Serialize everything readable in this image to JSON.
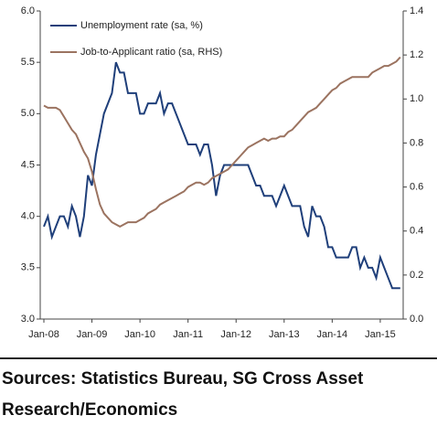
{
  "chart_data": {
    "type": "line",
    "categories": [
      "Jan-08",
      null,
      null,
      null,
      null,
      null,
      null,
      null,
      null,
      null,
      null,
      null,
      "Jan-09",
      null,
      null,
      null,
      null,
      null,
      null,
      null,
      null,
      null,
      null,
      null,
      "Jan-10",
      null,
      null,
      null,
      null,
      null,
      null,
      null,
      null,
      null,
      null,
      null,
      "Jan-11",
      null,
      null,
      null,
      null,
      null,
      null,
      null,
      null,
      null,
      null,
      null,
      "Jan-12",
      null,
      null,
      null,
      null,
      null,
      null,
      null,
      null,
      null,
      null,
      null,
      "Jan-13",
      null,
      null,
      null,
      null,
      null,
      null,
      null,
      null,
      null,
      null,
      null,
      "Jan-14",
      null,
      null,
      null,
      null,
      null,
      null,
      null,
      null,
      null,
      null,
      null,
      "Jan-15",
      null,
      null,
      null,
      null,
      null
    ],
    "series": [
      {
        "name": "Unemployment rate (sa, %)",
        "color": "#1f3f7a",
        "axis": "y",
        "values": [
          3.9,
          4.0,
          3.8,
          3.9,
          4.0,
          4.0,
          3.9,
          4.1,
          4.0,
          3.8,
          4.0,
          4.4,
          4.3,
          4.6,
          4.8,
          5.0,
          5.1,
          5.2,
          5.5,
          5.4,
          5.4,
          5.2,
          5.2,
          5.2,
          5.0,
          5.0,
          5.1,
          5.1,
          5.1,
          5.2,
          5.0,
          5.1,
          5.1,
          5.0,
          4.9,
          4.8,
          4.7,
          4.7,
          4.7,
          4.6,
          4.7,
          4.7,
          4.5,
          4.2,
          4.4,
          4.5,
          4.5,
          4.5,
          4.5,
          4.5,
          4.5,
          4.5,
          4.4,
          4.3,
          4.3,
          4.2,
          4.2,
          4.2,
          4.1,
          4.2,
          4.3,
          4.2,
          4.1,
          4.1,
          4.1,
          3.9,
          3.8,
          4.1,
          4.0,
          4.0,
          3.9,
          3.7,
          3.7,
          3.6,
          3.6,
          3.6,
          3.6,
          3.7,
          3.7,
          3.5,
          3.6,
          3.5,
          3.5,
          3.4,
          3.6,
          3.5,
          3.4,
          3.3,
          3.3,
          3.3
        ]
      },
      {
        "name": "Job-to-Applicant ratio (sa, RHS)",
        "color": "#9b7360",
        "axis": "y2",
        "values": [
          0.97,
          0.96,
          0.96,
          0.96,
          0.95,
          0.92,
          0.89,
          0.86,
          0.84,
          0.8,
          0.76,
          0.73,
          0.67,
          0.59,
          0.52,
          0.48,
          0.46,
          0.44,
          0.43,
          0.42,
          0.43,
          0.44,
          0.44,
          0.44,
          0.45,
          0.46,
          0.48,
          0.49,
          0.5,
          0.52,
          0.53,
          0.54,
          0.55,
          0.56,
          0.57,
          0.58,
          0.6,
          0.61,
          0.62,
          0.62,
          0.61,
          0.62,
          0.64,
          0.65,
          0.66,
          0.67,
          0.68,
          0.7,
          0.72,
          0.74,
          0.76,
          0.78,
          0.79,
          0.8,
          0.81,
          0.82,
          0.81,
          0.82,
          0.82,
          0.83,
          0.83,
          0.85,
          0.86,
          0.88,
          0.9,
          0.92,
          0.94,
          0.95,
          0.96,
          0.98,
          1.0,
          1.02,
          1.04,
          1.05,
          1.07,
          1.08,
          1.09,
          1.1,
          1.1,
          1.1,
          1.1,
          1.1,
          1.12,
          1.13,
          1.14,
          1.15,
          1.15,
          1.16,
          1.17,
          1.19
        ]
      }
    ],
    "ylim": [
      3.0,
      6.0
    ],
    "yticks": [
      {
        "value": 3.0,
        "label": "3.0"
      },
      3.5,
      {
        "value": 4.0,
        "label": "4.0"
      },
      4.5,
      {
        "value": 5.0,
        "label": "5.0"
      },
      5.5,
      {
        "value": 6.0,
        "label": "6.0"
      }
    ],
    "y2lim": [
      0.0,
      1.4
    ],
    "y2ticks": [
      {
        "value": 0.0,
        "label": "0.0"
      },
      0.2,
      0.4,
      0.6,
      0.8,
      {
        "value": 1.0,
        "label": "1.0"
      },
      1.2,
      1.4
    ],
    "grid": false,
    "legend": "top-left",
    "source": "Sources: Statistics Bureau, SG Cross Asset Research/Economics"
  }
}
